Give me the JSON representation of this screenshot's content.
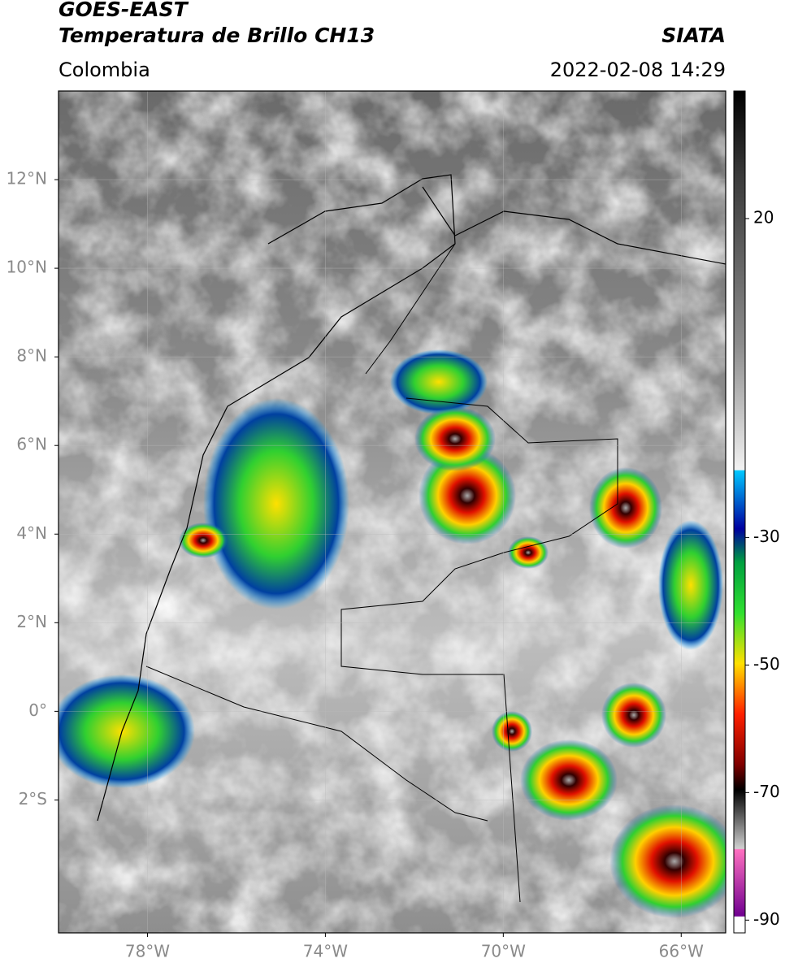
{
  "header": {
    "title": "GOES-EAST",
    "subtitle": "Temperatura de Brillo CH13",
    "source": "SIATA",
    "region": "Colombia",
    "timestamp": "2022-02-08 14:29"
  },
  "map": {
    "xlim": [
      -80,
      -65
    ],
    "ylim": [
      -5,
      14
    ],
    "xticks": [
      {
        "value": -78,
        "label": "78°W"
      },
      {
        "value": -74,
        "label": "74°W"
      },
      {
        "value": -70,
        "label": "70°W"
      },
      {
        "value": -66,
        "label": "66°W"
      }
    ],
    "yticks": [
      {
        "value": 12,
        "label": "12°N"
      },
      {
        "value": 10,
        "label": "10°N"
      },
      {
        "value": 8,
        "label": "8°N"
      },
      {
        "value": 6,
        "label": "6°N"
      },
      {
        "value": 4,
        "label": "4°N"
      },
      {
        "value": 2,
        "label": "2°N"
      },
      {
        "value": 0,
        "label": "0°"
      },
      {
        "value": -2,
        "label": "2°S"
      }
    ],
    "grid": true
  },
  "colorbar": {
    "lim": [
      -92,
      40
    ],
    "ticks": [
      20,
      -30,
      -50,
      -70,
      -90
    ]
  }
}
